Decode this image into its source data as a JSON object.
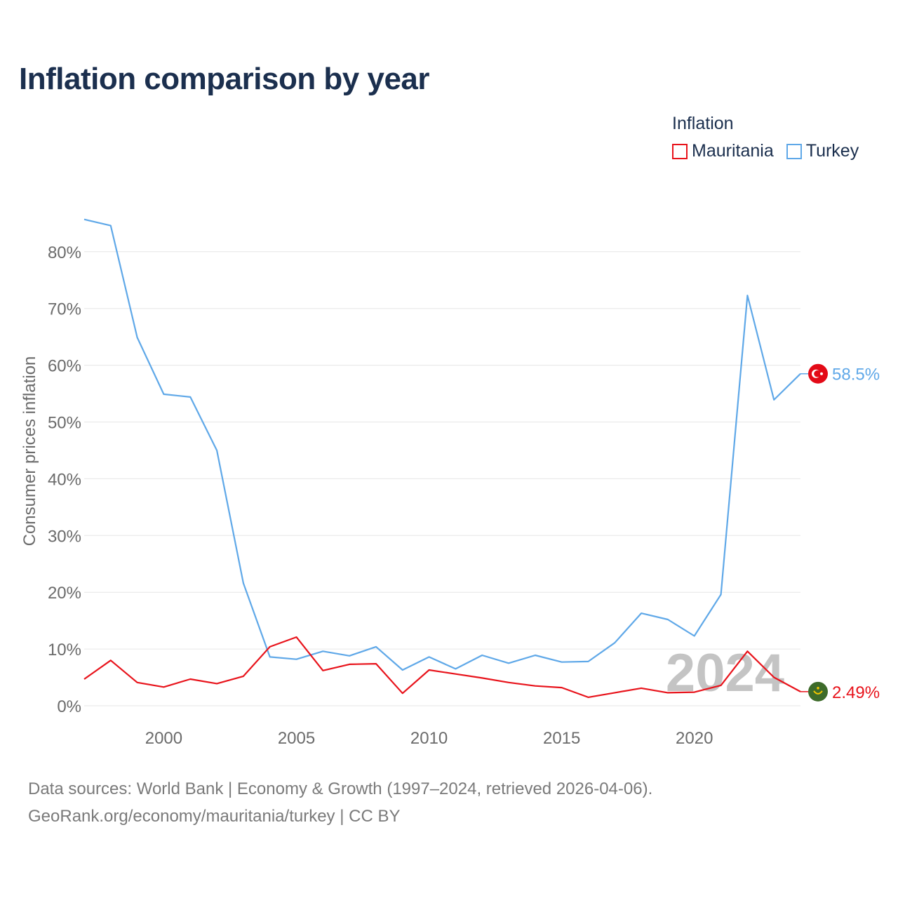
{
  "title": "Inflation comparison by year",
  "legend": {
    "title": "Inflation",
    "items": [
      {
        "label": "Mauritania",
        "color": "#e8131b"
      },
      {
        "label": "Turkey",
        "color": "#5fa8e8"
      }
    ]
  },
  "watermark_year": "2024",
  "footer": {
    "line1": "Data sources: World Bank | Economy & Growth (1997–2024, retrieved 2026-04-06).",
    "line2": "GeoRank.org/economy/mauritania/turkey | CC BY"
  },
  "chart_data": {
    "type": "line",
    "title": "Inflation comparison by year",
    "xlabel": "",
    "ylabel": "Consumer prices inflation",
    "xlim": [
      1997,
      2024
    ],
    "ylim": [
      0,
      85
    ],
    "x_ticks": [
      2000,
      2005,
      2010,
      2015,
      2020
    ],
    "y_ticks": [
      0,
      10,
      20,
      30,
      40,
      50,
      60,
      70,
      80
    ],
    "y_tick_labels": [
      "0%",
      "10%",
      "20%",
      "30%",
      "40%",
      "50%",
      "60%",
      "70%",
      "80%"
    ],
    "grid": true,
    "legend_position": "top-right",
    "x": [
      1997,
      1998,
      1999,
      2000,
      2001,
      2002,
      2003,
      2004,
      2005,
      2006,
      2007,
      2008,
      2009,
      2010,
      2011,
      2012,
      2013,
      2014,
      2015,
      2016,
      2017,
      2018,
      2019,
      2020,
      2021,
      2022,
      2023,
      2024
    ],
    "series": [
      {
        "name": "Turkey",
        "color": "#5fa8e8",
        "end_label": "58.5%",
        "flag_icon": "turkey-flag-icon",
        "values": [
          85.7,
          84.6,
          64.9,
          54.9,
          54.4,
          45.0,
          21.6,
          8.6,
          8.2,
          9.6,
          8.8,
          10.4,
          6.3,
          8.6,
          6.5,
          8.9,
          7.5,
          8.9,
          7.7,
          7.8,
          11.1,
          16.3,
          15.2,
          12.3,
          19.6,
          72.3,
          53.9,
          58.5
        ]
      },
      {
        "name": "Mauritania",
        "color": "#e8131b",
        "end_label": "2.49%",
        "flag_icon": "mauritania-flag-icon",
        "values": [
          4.7,
          8.0,
          4.1,
          3.3,
          4.7,
          3.9,
          5.2,
          10.4,
          12.1,
          6.2,
          7.3,
          7.4,
          2.2,
          6.3,
          5.6,
          4.9,
          4.1,
          3.5,
          3.2,
          1.5,
          2.3,
          3.1,
          2.3,
          2.4,
          3.6,
          9.6,
          5.0,
          2.49
        ]
      }
    ]
  }
}
